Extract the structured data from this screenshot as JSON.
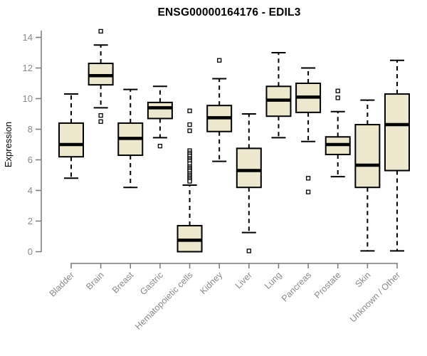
{
  "header": {
    "title": "ENSG00000164176 - EDIL3"
  },
  "chart_data": {
    "type": "boxplot",
    "title": "ENSG00000164176 - EDIL3",
    "xlabel": "",
    "ylabel": "Expression",
    "ylim": [
      0,
      14
    ],
    "yticks": [
      0,
      2,
      4,
      6,
      8,
      10,
      12,
      14
    ],
    "grid": false,
    "legend": "none",
    "categories": [
      "Bladder",
      "Brain",
      "Breast",
      "Gastric",
      "Hematopoietic cells",
      "Kidney",
      "Liver",
      "Lung",
      "Pancreas",
      "Prostate",
      "Skin",
      "Unknown / Other"
    ],
    "boxes": [
      {
        "category": "Bladder",
        "whisker_low": 4.8,
        "q1": 6.2,
        "median": 7.0,
        "q3": 8.4,
        "whisker_high": 10.3,
        "outliers": []
      },
      {
        "category": "Brain",
        "whisker_low": 9.4,
        "q1": 10.9,
        "median": 11.5,
        "q3": 12.3,
        "whisker_high": 13.5,
        "outliers": [
          14.4,
          8.9,
          8.5
        ]
      },
      {
        "category": "Breast",
        "whisker_low": 4.2,
        "q1": 6.3,
        "median": 7.4,
        "q3": 8.4,
        "whisker_high": 10.6,
        "outliers": []
      },
      {
        "category": "Gastric",
        "whisker_low": 7.45,
        "q1": 8.7,
        "median": 9.4,
        "q3": 9.75,
        "whisker_high": 10.8,
        "outliers": [
          6.9
        ]
      },
      {
        "category": "Hematopoietic cells",
        "whisker_low": 0.0,
        "q1": 0.0,
        "median": 0.75,
        "q3": 1.7,
        "whisker_high": 4.35,
        "outliers": [
          9.2,
          8.3,
          7.9,
          6.6,
          6.45,
          6.35,
          6.25,
          6.1,
          6.0,
          5.9,
          5.75,
          5.55,
          5.45,
          5.35,
          5.25,
          5.1,
          5.0,
          4.9,
          4.8,
          4.7,
          4.6
        ]
      },
      {
        "category": "Kidney",
        "whisker_low": 5.9,
        "q1": 7.85,
        "median": 8.75,
        "q3": 9.55,
        "whisker_high": 11.3,
        "outliers": [
          12.5
        ]
      },
      {
        "category": "Liver",
        "whisker_low": 1.25,
        "q1": 4.2,
        "median": 5.3,
        "q3": 6.75,
        "whisker_high": 9.0,
        "outliers": [
          0.05
        ]
      },
      {
        "category": "Lung",
        "whisker_low": 7.45,
        "q1": 8.85,
        "median": 9.9,
        "q3": 10.8,
        "whisker_high": 13.0,
        "outliers": []
      },
      {
        "category": "Pancreas",
        "whisker_low": 7.2,
        "q1": 9.1,
        "median": 10.1,
        "q3": 11.0,
        "whisker_high": 12.0,
        "outliers": [
          4.8,
          3.9
        ]
      },
      {
        "category": "Prostate",
        "whisker_low": 4.9,
        "q1": 6.35,
        "median": 7.0,
        "q3": 7.5,
        "whisker_high": 9.15,
        "outliers": [
          10.5,
          10.05
        ]
      },
      {
        "category": "Skin",
        "whisker_low": 0.05,
        "q1": 4.2,
        "median": 5.65,
        "q3": 8.3,
        "whisker_high": 9.9,
        "outliers": []
      },
      {
        "category": "Unknown / Other",
        "whisker_low": 0.05,
        "q1": 5.3,
        "median": 8.3,
        "q3": 10.3,
        "whisker_high": 12.5,
        "outliers": []
      }
    ],
    "colors": {
      "box_fill": "#EDE7CE",
      "box_border": "#000000",
      "median": "#000000",
      "whisker": "#000000",
      "outlier_fill": "#FFFFFF",
      "outlier_border": "#000000",
      "axis": "#787878",
      "tick_labels": "#8A8A8A",
      "title": "#000000",
      "background": "#FFFFFF"
    }
  }
}
